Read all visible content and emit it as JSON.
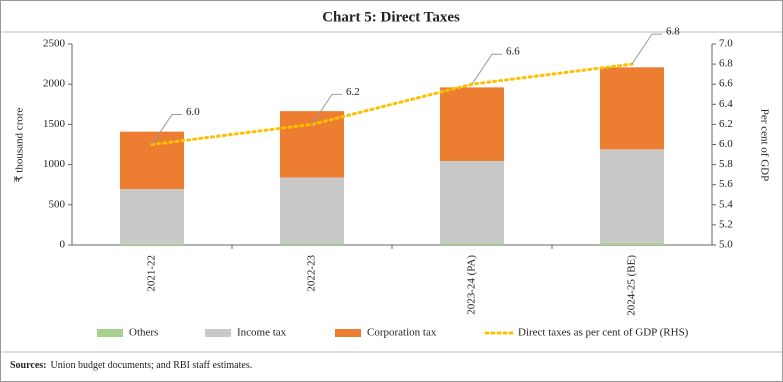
{
  "chart_data": {
    "type": "bar",
    "stacked": true,
    "title": "Chart 5: Direct Taxes",
    "y_label": "₹ thousand crore",
    "y2_label": "Per cent of GDP",
    "categories": [
      "2021-22",
      "2022-23",
      "2023-24 (PA)",
      "2024-25 (BE)"
    ],
    "series": [
      {
        "name": "Others",
        "color": "#a9d18e",
        "values": [
          15,
          18,
          22,
          28
        ]
      },
      {
        "name": "Income tax",
        "color": "#c9c9c9",
        "values": [
          680,
          822,
          1023,
          1162
        ]
      },
      {
        "name": "Corporation tax",
        "color": "#ed7d31",
        "values": [
          715,
          825,
          915,
          1020
        ]
      },
      {
        "name": "Direct taxes as per cent of GDP (RHS)",
        "type": "line",
        "axis": "y2",
        "color": "#ffc000",
        "values": [
          6.0,
          6.2,
          6.6,
          6.8
        ],
        "value_labels": [
          "6.0",
          "6.2",
          "6.6",
          "6.8"
        ]
      }
    ],
    "ylim": [
      0,
      2500
    ],
    "yticks": [
      0,
      500,
      1000,
      1500,
      2000,
      2500
    ],
    "y2lim": [
      5.0,
      7.0
    ],
    "y2ticks": [
      {
        "value": 5.0,
        "label": "5.0"
      },
      5.2,
      5.4,
      5.6,
      5.8,
      {
        "value": 6.0,
        "label": "6.0"
      },
      6.2,
      6.4,
      6.6,
      6.8,
      {
        "value": 7.0,
        "label": "7.0"
      }
    ],
    "legend": "bottom",
    "source_label": "Sources:",
    "source_text": "Union budget documents; and RBI staff estimates."
  }
}
